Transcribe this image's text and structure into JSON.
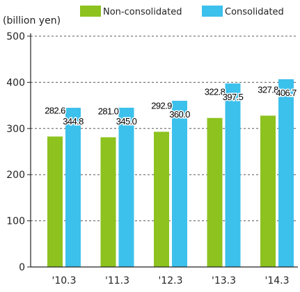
{
  "chart_data": {
    "type": "bar",
    "ylabel": "(billion yen)",
    "ylim": [
      0,
      500
    ],
    "yticks": [
      0,
      100,
      200,
      300,
      400,
      500
    ],
    "grid": true,
    "legend_position": "top",
    "categories": [
      "'10.3",
      "'11.3",
      "'12.3",
      "'13.3",
      "'14.3"
    ],
    "series": [
      {
        "name": "Non-consolidated",
        "color": "#8dc21f",
        "values": [
          282.6,
          281.0,
          292.9,
          322.8,
          327.8
        ],
        "labels": [
          "282.6",
          "281.0",
          "292.9",
          "322.8",
          "327.8"
        ]
      },
      {
        "name": "Consolidated",
        "color": "#3cc0ec",
        "values": [
          344.8,
          345.0,
          360.0,
          397.5,
          406.7
        ],
        "labels": [
          "344.8",
          "345.0",
          "360.0",
          "397.5",
          "406.7"
        ]
      }
    ]
  }
}
